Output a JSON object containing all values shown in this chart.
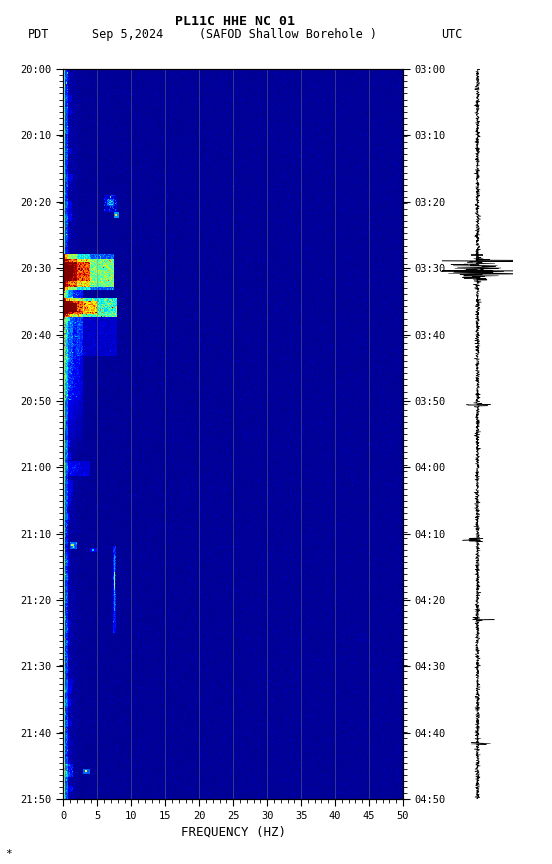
{
  "title_line1": "PL11C HHE NC 01",
  "subtitle": "PDT   Sep 5,2024     (SAFOD Shallow Borehole )                UTC",
  "xlabel": "FREQUENCY (HZ)",
  "yticks_pdt": [
    "20:00",
    "20:10",
    "20:20",
    "20:30",
    "20:40",
    "20:50",
    "21:00",
    "21:10",
    "21:20",
    "21:30",
    "21:40",
    "21:50"
  ],
  "yticks_utc": [
    "03:00",
    "03:10",
    "03:20",
    "03:30",
    "03:40",
    "03:50",
    "04:00",
    "04:10",
    "04:20",
    "04:30",
    "04:40",
    "04:50"
  ],
  "xticks": [
    0,
    5,
    10,
    15,
    20,
    25,
    30,
    35,
    40,
    45,
    50
  ],
  "vert_grid_lines": [
    5,
    10,
    15,
    20,
    25,
    30,
    35,
    40,
    45
  ],
  "freq_min": 0,
  "freq_max": 50,
  "figure_width": 5.52,
  "figure_height": 8.64,
  "dpi": 100
}
